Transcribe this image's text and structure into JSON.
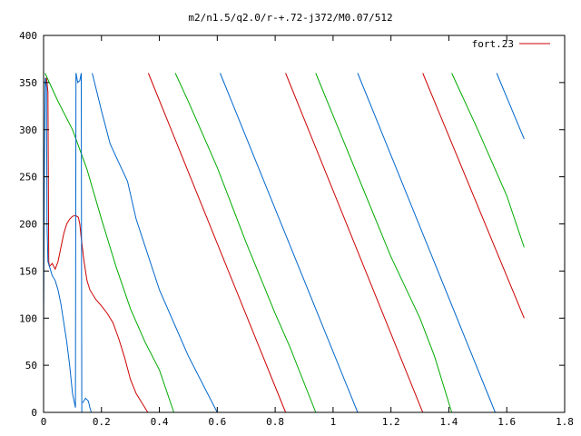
{
  "chart_data": {
    "type": "line",
    "title": "m2/n1.5/q2.0/r-+.72-j372/M0.07/512",
    "xlabel": "",
    "ylabel": "",
    "xlim": [
      0,
      1.8
    ],
    "ylim": [
      0,
      400
    ],
    "grid": false,
    "legend_placement": "top-right",
    "x_ticks": [
      0,
      0.2,
      0.4,
      0.6,
      0.8,
      1,
      1.2,
      1.4,
      1.6,
      1.8
    ],
    "x_tick_labels": [
      "0",
      "0.2",
      "0.4",
      "0.6",
      "0.8",
      "1",
      "1.2",
      "1.4",
      "1.6",
      "1.8"
    ],
    "y_ticks": [
      0,
      50,
      100,
      150,
      200,
      250,
      300,
      350,
      400
    ],
    "y_tick_labels": [
      "0",
      "50",
      "100",
      "150",
      "200",
      "250",
      "300",
      "350",
      "400"
    ],
    "legend": [
      {
        "label": "fort.23",
        "color": "#cc0000"
      }
    ],
    "series": [
      {
        "name": "fort.23",
        "color": "#cc0000",
        "segments": [
          [
            [
              0.005,
              350
            ],
            [
              0.01,
              355
            ],
            [
              0.015,
              340
            ],
            [
              0.018,
              160
            ],
            [
              0.02,
              155
            ],
            [
              0.03,
              158
            ],
            [
              0.04,
              152
            ],
            [
              0.05,
              160
            ],
            [
              0.06,
              175
            ],
            [
              0.07,
              190
            ],
            [
              0.08,
              200
            ],
            [
              0.09,
              205
            ],
            [
              0.1,
              208
            ],
            [
              0.11,
              209
            ],
            [
              0.12,
              207
            ],
            [
              0.125,
              200
            ],
            [
              0.13,
              185
            ],
            [
              0.14,
              160
            ],
            [
              0.15,
              140
            ],
            [
              0.16,
              130
            ],
            [
              0.18,
              120
            ],
            [
              0.2,
              113
            ],
            [
              0.22,
              105
            ],
            [
              0.24,
              95
            ],
            [
              0.26,
              78
            ],
            [
              0.28,
              58
            ],
            [
              0.3,
              35
            ],
            [
              0.32,
              20
            ],
            [
              0.34,
              10
            ],
            [
              0.36,
              0
            ]
          ],
          [
            [
              0.362,
              360
            ],
            [
              0.836,
              0
            ]
          ],
          [
            [
              0.836,
              360
            ],
            [
              1.31,
              0
            ]
          ],
          [
            [
              1.31,
              360
            ],
            [
              1.66,
              100
            ]
          ]
        ]
      },
      {
        "name": "",
        "color": "#00aa00",
        "segments": [
          [
            [
              0.005,
              360
            ],
            [
              0.05,
              330
            ],
            [
              0.1,
              300
            ],
            [
              0.15,
              258
            ],
            [
              0.2,
              205
            ],
            [
              0.25,
              155
            ],
            [
              0.3,
              110
            ],
            [
              0.35,
              75
            ],
            [
              0.4,
              45
            ],
            [
              0.45,
              0
            ]
          ],
          [
            [
              0.455,
              360
            ],
            [
              0.5,
              330
            ],
            [
              0.6,
              260
            ],
            [
              0.7,
              180
            ],
            [
              0.8,
              105
            ],
            [
              0.85,
              70
            ],
            [
              0.94,
              0
            ]
          ],
          [
            [
              0.94,
              360
            ],
            [
              1.0,
              315
            ],
            [
              1.1,
              240
            ],
            [
              1.2,
              165
            ],
            [
              1.3,
              100
            ],
            [
              1.35,
              60
            ],
            [
              1.41,
              0
            ]
          ],
          [
            [
              1.41,
              360
            ],
            [
              1.5,
              300
            ],
            [
              1.6,
              230
            ],
            [
              1.66,
              175
            ]
          ]
        ]
      },
      {
        "name": "",
        "color": "#0066cc",
        "segments": [
          [
            [
              0.0,
              90
            ],
            [
              0.003,
              270
            ],
            [
              0.006,
              355
            ],
            [
              0.01,
              345
            ],
            [
              0.012,
              200
            ],
            [
              0.015,
              160
            ],
            [
              0.02,
              155
            ],
            [
              0.03,
              145
            ],
            [
              0.04,
              140
            ],
            [
              0.05,
              130
            ],
            [
              0.06,
              115
            ],
            [
              0.07,
              95
            ],
            [
              0.08,
              75
            ],
            [
              0.09,
              50
            ],
            [
              0.1,
              20
            ],
            [
              0.11,
              5
            ],
            [
              0.112,
              360
            ]
          ],
          [
            [
              0.112,
              360
            ],
            [
              0.118,
              350
            ],
            [
              0.125,
              352
            ],
            [
              0.13,
              360
            ],
            [
              0.132,
              0
            ]
          ],
          [
            [
              0.135,
              10
            ],
            [
              0.145,
              15
            ],
            [
              0.155,
              12
            ],
            [
              0.16,
              5
            ],
            [
              0.165,
              0
            ]
          ],
          [
            [
              0.168,
              360
            ],
            [
              0.2,
              320
            ],
            [
              0.23,
              285
            ],
            [
              0.26,
              265
            ],
            [
              0.29,
              245
            ],
            [
              0.32,
              205
            ],
            [
              0.4,
              130
            ],
            [
              0.5,
              60
            ],
            [
              0.6,
              0
            ]
          ],
          [
            [
              0.61,
              360
            ],
            [
              1.085,
              0
            ]
          ],
          [
            [
              1.085,
              360
            ],
            [
              1.56,
              0
            ]
          ],
          [
            [
              1.565,
              360
            ],
            [
              1.66,
              290
            ]
          ]
        ]
      }
    ]
  }
}
